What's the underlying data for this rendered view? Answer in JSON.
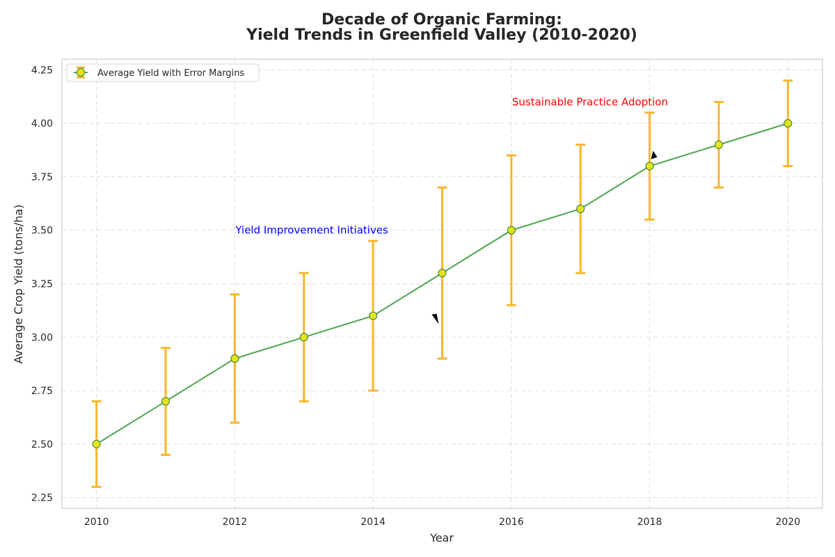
{
  "chart_data": {
    "type": "line",
    "title_lines": [
      "Decade of Organic Farming:",
      "Yield Trends in Greenfield Valley (2010-2020)"
    ],
    "xlabel": "Year",
    "ylabel": "Average Crop Yield (tons/ha)",
    "xlim": [
      2009.5,
      2020.5
    ],
    "ylim": [
      2.2,
      4.3
    ],
    "x_ticks": [
      2010,
      2012,
      2014,
      2016,
      2018,
      2020
    ],
    "y_ticks": [
      2.25,
      2.5,
      2.75,
      3.0,
      3.25,
      3.5,
      3.75,
      4.0,
      4.25
    ],
    "y_tick_labels": [
      "2.25",
      "2.50",
      "2.75",
      "3.00",
      "3.25",
      "3.50",
      "3.75",
      "4.00",
      "4.25"
    ],
    "grid": true,
    "legend_position": "top-left",
    "series": [
      {
        "name": "Average Yield with Error Margins",
        "x": [
          2010,
          2011,
          2012,
          2013,
          2014,
          2015,
          2016,
          2017,
          2018,
          2019,
          2020
        ],
        "values": [
          2.5,
          2.7,
          2.9,
          3.0,
          3.1,
          3.3,
          3.5,
          3.6,
          3.8,
          3.9,
          4.0
        ],
        "error_low": [
          2.3,
          2.45,
          2.6,
          2.7,
          2.75,
          2.9,
          3.15,
          3.3,
          3.55,
          3.7,
          3.8
        ],
        "error_high": [
          2.7,
          2.95,
          3.2,
          3.3,
          3.45,
          3.7,
          3.85,
          3.9,
          4.05,
          4.1,
          4.2
        ]
      }
    ],
    "annotations": [
      {
        "text": "Yield Improvement Initiatives",
        "x": 2012,
        "y": 3.5,
        "target_x": 2015,
        "target_y": 3.1
      },
      {
        "text": "Sustainable Practice Adoption",
        "x": 2016,
        "y": 4.1,
        "target_x": 2018,
        "target_y": 3.8
      }
    ],
    "colors": {
      "line": "#4ea44e",
      "marker_fill": "#e4e41c",
      "marker_edge": "#4d8a3a",
      "error_bar": "#f8b62d",
      "annotation_1": "#0000ff",
      "annotation_2": "#ff0000",
      "arrow": "#000000"
    }
  }
}
